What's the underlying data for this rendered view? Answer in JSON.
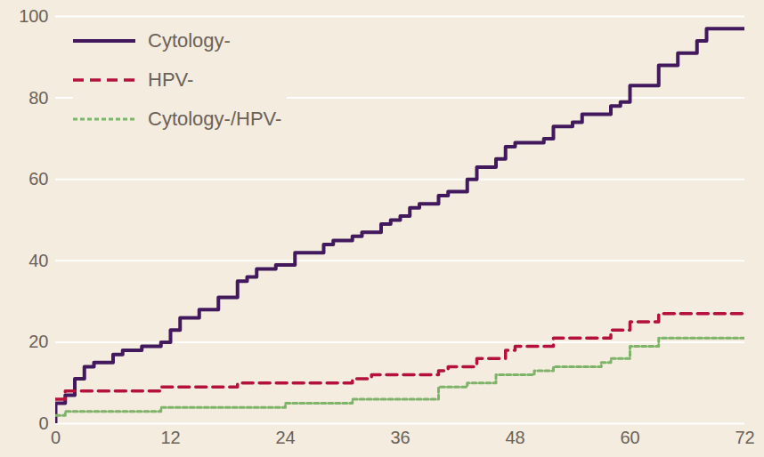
{
  "chart_data": {
    "type": "line",
    "grid": true,
    "legend": "top-left",
    "xlim": [
      0,
      72
    ],
    "xticks": [
      0,
      12,
      24,
      36,
      48,
      60,
      72
    ],
    "ylim": [
      0,
      100
    ],
    "yticks": [
      0,
      20,
      40,
      60,
      80,
      100
    ],
    "series": [
      {
        "name": "Cytology-",
        "color": "#41195c",
        "line_style": "solid",
        "x": [
          0,
          0,
          1,
          2,
          3,
          4,
          6,
          7,
          9,
          11,
          12,
          13,
          15,
          17,
          19,
          20,
          21,
          23,
          25,
          28,
          29,
          31,
          32,
          34,
          35,
          36,
          37,
          38,
          40,
          41,
          43,
          44,
          46,
          47,
          48,
          51,
          52,
          54,
          55,
          58,
          59,
          60,
          63,
          65,
          67,
          68,
          72
        ],
        "values": [
          0,
          5,
          7,
          11,
          14,
          15,
          17,
          18,
          19,
          20,
          23,
          26,
          28,
          31,
          35,
          36,
          38,
          39,
          42,
          44,
          45,
          46,
          47,
          49,
          50,
          51,
          53,
          54,
          56,
          57,
          60,
          63,
          65,
          68,
          69,
          70,
          73,
          74,
          76,
          78,
          79,
          83,
          88,
          91,
          94,
          97,
          97
        ]
      },
      {
        "name": "HPV-",
        "color": "#b4123d",
        "line_style": "dashed",
        "x": [
          0,
          1,
          11,
          19,
          31,
          33,
          40,
          41,
          44,
          47,
          48,
          52,
          58,
          60,
          63,
          72
        ],
        "values": [
          6,
          8,
          9,
          10,
          11,
          12,
          13,
          14,
          16,
          18,
          19,
          21,
          23,
          25,
          27,
          27
        ]
      },
      {
        "name": "Cytology-/HPV-",
        "color": "#7fb36a",
        "line_style": "dotted",
        "x": [
          0,
          1,
          11,
          24,
          31,
          40,
          43,
          46,
          50,
          52,
          57,
          58,
          60,
          63,
          72
        ],
        "values": [
          2,
          3,
          4,
          5,
          6,
          9,
          10,
          12,
          13,
          14,
          15,
          16,
          19,
          21,
          21
        ]
      }
    ]
  }
}
